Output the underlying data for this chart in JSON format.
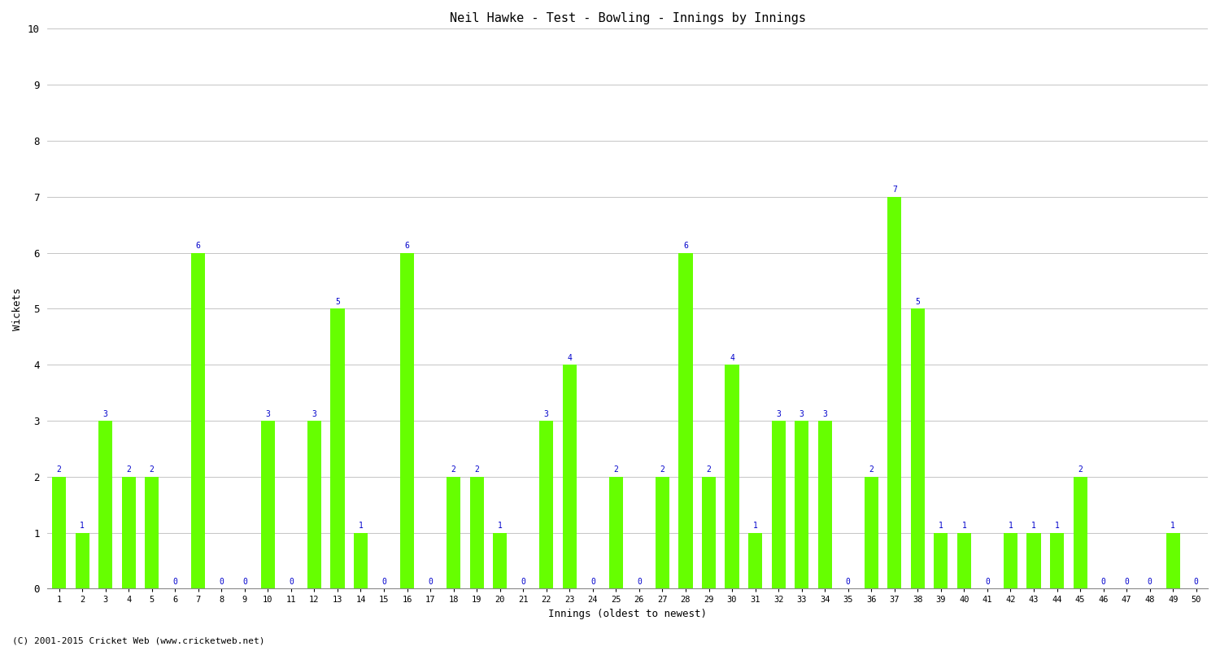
{
  "title": "Neil Hawke - Test - Bowling - Innings by Innings",
  "xlabel": "Innings (oldest to newest)",
  "ylabel": "Wickets",
  "background_color": "#ffffff",
  "bar_color": "#66ff00",
  "label_color": "#0000cc",
  "ylim": [
    0,
    10
  ],
  "yticks": [
    0,
    1,
    2,
    3,
    4,
    5,
    6,
    7,
    8,
    9,
    10
  ],
  "footnote": "(C) 2001-2015 Cricket Web (www.cricketweb.net)",
  "categories": [
    "1",
    "2",
    "3",
    "4",
    "5",
    "6",
    "7",
    "8",
    "9",
    "10",
    "11",
    "12",
    "13",
    "14",
    "15",
    "16",
    "17",
    "18",
    "19",
    "20",
    "21",
    "22",
    "23",
    "24",
    "25",
    "26",
    "27",
    "28",
    "29",
    "30",
    "31",
    "32",
    "33",
    "34",
    "35",
    "36",
    "37",
    "38",
    "39",
    "40",
    "41",
    "42",
    "43",
    "44",
    "45",
    "46",
    "47",
    "48",
    "49",
    "50"
  ],
  "values": [
    2,
    1,
    3,
    2,
    2,
    0,
    6,
    0,
    0,
    3,
    0,
    3,
    5,
    1,
    0,
    6,
    0,
    2,
    2,
    1,
    0,
    3,
    4,
    0,
    2,
    0,
    2,
    6,
    2,
    4,
    1,
    3,
    3,
    3,
    0,
    2,
    7,
    5,
    1,
    1,
    0,
    1,
    1,
    1,
    2,
    0,
    0,
    0,
    1,
    0
  ]
}
